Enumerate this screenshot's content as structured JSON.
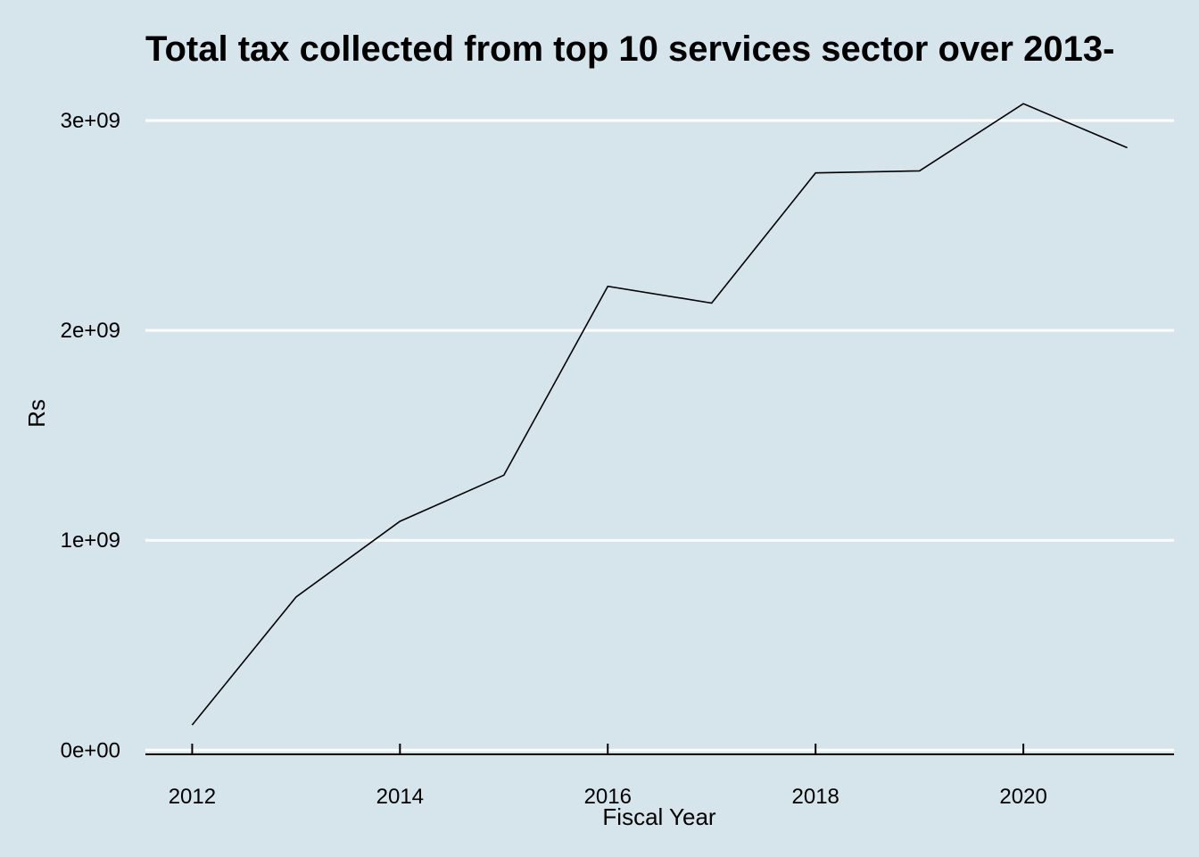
{
  "chart_data": {
    "type": "line",
    "title": "Total tax collected from top 10 services sector over 2013-",
    "xlabel": "Fiscal Year",
    "ylabel": "Rs",
    "x": [
      2012,
      2013,
      2014,
      2015,
      2016,
      2017,
      2018,
      2019,
      2020,
      2021
    ],
    "series": [
      {
        "values": [
          120000000,
          730000000,
          1090000000,
          1310000000,
          2210000000,
          2130000000,
          2750000000,
          2760000000,
          3080000000,
          2870000000
        ]
      }
    ],
    "xticks": [
      2012,
      2014,
      2016,
      2018,
      2020
    ],
    "xtick_labels": [
      "2012",
      "2014",
      "2016",
      "2018",
      "2020"
    ],
    "yticks": [
      0,
      1000000000,
      2000000000,
      3000000000
    ],
    "ytick_labels": [
      "0e+00",
      "1e+09",
      "2e+09",
      "3e+09"
    ],
    "xlim": [
      2011.55,
      2021.45
    ],
    "ylim": [
      -20000000,
      3170000000
    ],
    "grid": true,
    "background_color": "#d6e4ec",
    "grid_color": "#ffffff",
    "line_color": "#000000"
  }
}
